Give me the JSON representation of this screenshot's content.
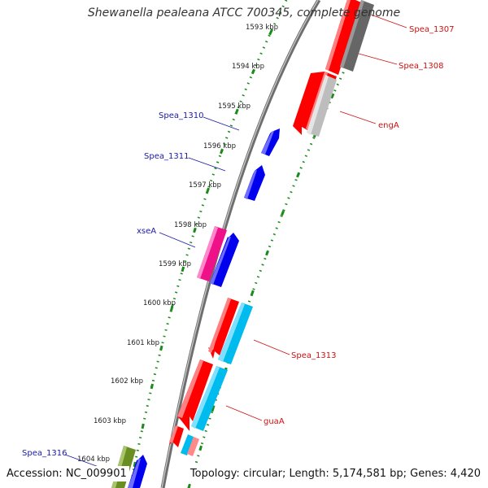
{
  "title": "Shewanella pealeana ATCC 700345, complete genome",
  "footer": {
    "accession": "Accession: NC_009901",
    "summary": "Topology: circular; Length: 5,174,581 bp; Genes: 4,420"
  },
  "colors": {
    "backbone": "#7a7a7a",
    "scale_ticks": "#1a8a1a",
    "label_forward": "#1a1aa8",
    "label_reverse": "#cc1111"
  },
  "scale_labels": [
    "1593 kbp",
    "1594 kbp",
    "1595 kbp",
    "1596 kbp",
    "1597 kbp",
    "1598 kbp",
    "1599 kbp",
    "1600 kbp",
    "1601 kbp",
    "1602 kbp",
    "1603 kbp",
    "1604 kbp"
  ],
  "genes": [
    {
      "name": "Spea_1307",
      "strand": "reverse",
      "color": "#ff0000"
    },
    {
      "name": "Spea_1308",
      "strand": "reverse",
      "color": "#666666"
    },
    {
      "name": "engA",
      "strand": "reverse",
      "color": "#bbbbbb"
    },
    {
      "name": "Spea_1310",
      "strand": "forward",
      "color": "#0000ee"
    },
    {
      "name": "Spea_1311",
      "strand": "forward",
      "color": "#0000ee"
    },
    {
      "name": "xseA",
      "strand": "forward",
      "color": "#ee1188"
    },
    {
      "name": "Spea_1313",
      "strand": "reverse",
      "color": "#00bbee"
    },
    {
      "name": "guaA",
      "strand": "reverse",
      "color": "#ff0000"
    },
    {
      "name": "Spea_1316",
      "strand": "forward",
      "color": "#6b8e23"
    }
  ]
}
